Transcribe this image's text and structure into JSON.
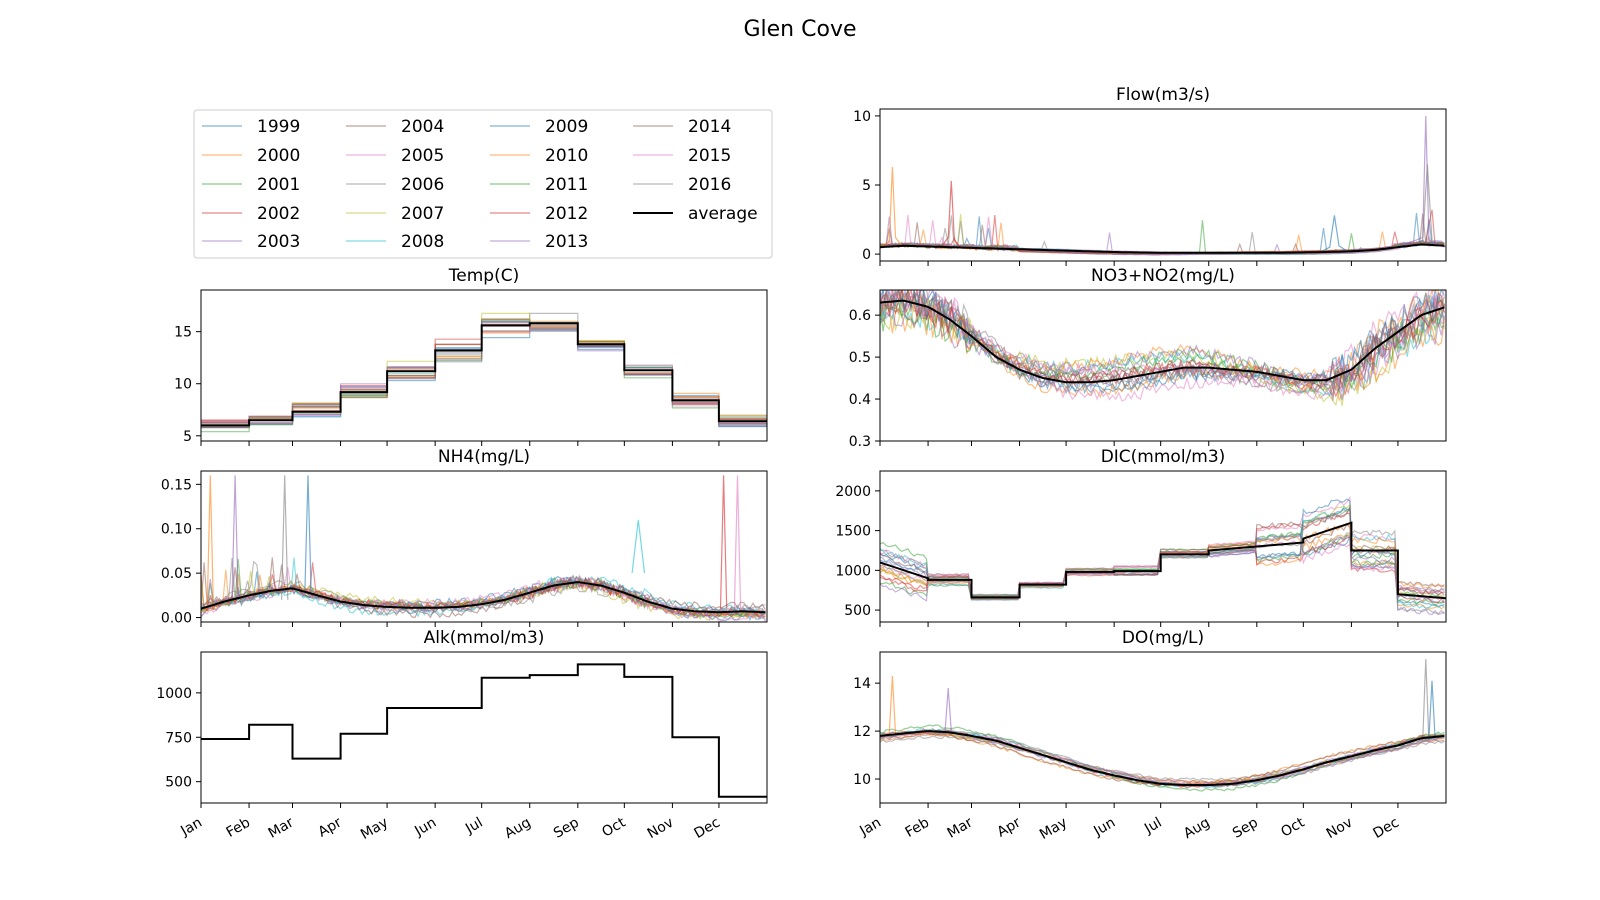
{
  "figure": {
    "title": "Glen Cove",
    "months": [
      "Jan",
      "Feb",
      "Mar",
      "Apr",
      "May",
      "Jun",
      "Jul",
      "Aug",
      "Sep",
      "Oct",
      "Nov",
      "Dec"
    ]
  },
  "legend": {
    "entries": [
      {
        "label": "1999",
        "color": "#1f77b4"
      },
      {
        "label": "2000",
        "color": "#ff7f0e"
      },
      {
        "label": "2001",
        "color": "#2ca02c"
      },
      {
        "label": "2002",
        "color": "#d62728"
      },
      {
        "label": "2003",
        "color": "#9467bd"
      },
      {
        "label": "2004",
        "color": "#8c564b"
      },
      {
        "label": "2005",
        "color": "#e377c2"
      },
      {
        "label": "2006",
        "color": "#7f7f7f"
      },
      {
        "label": "2007",
        "color": "#bcbd22"
      },
      {
        "label": "2008",
        "color": "#17becf"
      },
      {
        "label": "2009",
        "color": "#1f77b4"
      },
      {
        "label": "2010",
        "color": "#ff7f0e"
      },
      {
        "label": "2011",
        "color": "#2ca02c"
      },
      {
        "label": "2012",
        "color": "#d62728"
      },
      {
        "label": "2013",
        "color": "#9467bd"
      },
      {
        "label": "2014",
        "color": "#8c564b"
      },
      {
        "label": "2015",
        "color": "#e377c2"
      },
      {
        "label": "2016",
        "color": "#7f7f7f"
      },
      {
        "label": "average",
        "color": "#000000"
      }
    ]
  },
  "chart_data": [
    {
      "id": "flow",
      "type": "line",
      "title": "Flow(m3/s)",
      "ylim": [
        -0.5,
        10.5
      ],
      "yticks": [
        0,
        5,
        10
      ],
      "tick_labels": [
        "0",
        "5",
        "10"
      ],
      "xlim": [
        0,
        365
      ],
      "show_xlabels": false,
      "average": {
        "x": [
          0,
          15,
          31,
          45,
          59,
          75,
          90,
          105,
          120,
          135,
          151,
          166,
          181,
          196,
          212,
          227,
          243,
          258,
          273,
          288,
          304,
          319,
          334,
          349,
          365
        ],
        "y": [
          0.5,
          0.6,
          0.55,
          0.5,
          0.45,
          0.4,
          0.35,
          0.3,
          0.25,
          0.2,
          0.15,
          0.12,
          0.1,
          0.1,
          0.1,
          0.1,
          0.1,
          0.1,
          0.12,
          0.15,
          0.2,
          0.3,
          0.5,
          0.7,
          0.6
        ]
      },
      "highlights": [
        {
          "name": "2002",
          "x": [
            0,
            6,
            8,
            10,
            14
          ],
          "y": [
            0.5,
            0.9,
            6.3,
            1.2,
            0.6
          ]
        },
        {
          "name": "2000",
          "x": [
            334,
            350,
            352,
            354,
            360
          ],
          "y": [
            0.5,
            1.2,
            10.0,
            1.0,
            0.7
          ]
        },
        {
          "name": "2001",
          "x": [
            345,
            350,
            353,
            356,
            365
          ],
          "y": [
            0.6,
            1.0,
            6.5,
            1.0,
            0.5
          ]
        },
        {
          "name": "2003",
          "x": [
            285,
            290,
            293,
            296,
            300
          ],
          "y": [
            0.2,
            0.5,
            2.8,
            0.6,
            0.3
          ]
        },
        {
          "name": "1999",
          "x": [
            40,
            44,
            46,
            48,
            52
          ],
          "y": [
            0.6,
            1.2,
            5.3,
            1.0,
            0.5
          ]
        }
      ]
    },
    {
      "id": "temp",
      "type": "line",
      "title": "Temp(C)",
      "ylim": [
        4.5,
        19
      ],
      "yticks": [
        5,
        10,
        15
      ],
      "tick_labels": [
        "5",
        "10",
        "15"
      ],
      "xlim": [
        0,
        365
      ],
      "show_xlabels": false,
      "average_monthly": [
        6.0,
        6.5,
        7.3,
        9.2,
        11.2,
        13.2,
        15.6,
        15.8,
        13.8,
        11.3,
        8.4,
        6.4
      ],
      "spread": [
        1.0,
        1.0,
        1.5,
        1.4,
        1.6,
        2.0,
        2.4,
        2.0,
        1.0,
        1.2,
        1.2,
        1.0
      ]
    },
    {
      "id": "no3",
      "type": "line",
      "title": "NO3+NO2(mg/L)",
      "ylim": [
        0.3,
        0.66
      ],
      "yticks": [
        0.3,
        0.4,
        0.5,
        0.6
      ],
      "tick_labels": [
        "0.3",
        "0.4",
        "0.5",
        "0.6"
      ],
      "xlim": [
        0,
        365
      ],
      "show_xlabels": false,
      "average": {
        "x": [
          0,
          15,
          31,
          45,
          59,
          75,
          90,
          105,
          120,
          135,
          151,
          166,
          181,
          196,
          212,
          227,
          243,
          258,
          273,
          288,
          304,
          319,
          334,
          349,
          365
        ],
        "y": [
          0.63,
          0.635,
          0.62,
          0.59,
          0.55,
          0.5,
          0.47,
          0.45,
          0.44,
          0.44,
          0.445,
          0.455,
          0.465,
          0.475,
          0.475,
          0.47,
          0.465,
          0.455,
          0.445,
          0.445,
          0.47,
          0.52,
          0.56,
          0.6,
          0.62
        ]
      }
    },
    {
      "id": "nh4",
      "type": "line",
      "title": "NH4(mg/L)",
      "ylim": [
        -0.005,
        0.165
      ],
      "yticks": [
        0.0,
        0.05,
        0.1,
        0.15
      ],
      "tick_labels": [
        "0.00",
        "0.05",
        "0.10",
        "0.15"
      ],
      "xlim": [
        0,
        365
      ],
      "show_xlabels": false,
      "average": {
        "x": [
          0,
          15,
          31,
          45,
          59,
          75,
          90,
          105,
          120,
          135,
          151,
          166,
          181,
          196,
          212,
          227,
          243,
          258,
          273,
          288,
          304,
          319,
          334,
          349,
          365
        ],
        "y": [
          0.01,
          0.018,
          0.025,
          0.03,
          0.033,
          0.025,
          0.018,
          0.014,
          0.012,
          0.011,
          0.011,
          0.012,
          0.015,
          0.02,
          0.028,
          0.036,
          0.04,
          0.036,
          0.028,
          0.018,
          0.01,
          0.007,
          0.006,
          0.007,
          0.006
        ]
      },
      "spikes": [
        {
          "name": "2003",
          "x": [
            4,
            6,
            8
          ],
          "y": [
            0.01,
            0.16,
            0.01
          ]
        },
        {
          "name": "2006",
          "x": [
            20,
            22,
            24
          ],
          "y": [
            0.02,
            0.16,
            0.02
          ]
        },
        {
          "name": "1999",
          "x": [
            52,
            54,
            56
          ],
          "y": [
            0.02,
            0.16,
            0.02
          ]
        },
        {
          "name": "2002",
          "x": [
            67,
            69,
            71
          ],
          "y": [
            0.03,
            0.16,
            0.03
          ]
        },
        {
          "name": "2007",
          "x": [
            335,
            337,
            339
          ],
          "y": [
            0.01,
            0.16,
            0.01
          ]
        },
        {
          "name": "2011",
          "x": [
            344,
            346,
            348
          ],
          "y": [
            0.01,
            0.16,
            0.01
          ]
        },
        {
          "name": "2009",
          "x": [
            278,
            282,
            286
          ],
          "y": [
            0.05,
            0.11,
            0.05
          ]
        }
      ]
    },
    {
      "id": "dic",
      "type": "line",
      "title": "DIC(mmol/m3)",
      "ylim": [
        350,
        2250
      ],
      "yticks": [
        500,
        1000,
        1500,
        2000
      ],
      "tick_labels": [
        "500",
        "1000",
        "1500",
        "2000"
      ],
      "xlim": [
        0,
        365
      ],
      "show_xlabels": false,
      "average_monthly": [
        1100,
        880,
        660,
        820,
        980,
        990,
        1200,
        1250,
        1300,
        1400,
        1250,
        700
      ],
      "average_slope": [
        -200,
        0,
        0,
        0,
        0,
        0,
        0,
        50,
        50,
        200,
        0,
        -50
      ],
      "spread": [
        500,
        150,
        60,
        80,
        100,
        100,
        120,
        150,
        400,
        600,
        500,
        400
      ]
    },
    {
      "id": "alk",
      "type": "line",
      "title": "Alk(mmol/m3)",
      "ylim": [
        380,
        1230
      ],
      "yticks": [
        500,
        750,
        1000
      ],
      "tick_labels": [
        "500",
        "750",
        "1000"
      ],
      "xlim": [
        0,
        365
      ],
      "show_xlabels": true,
      "average_monthly": [
        740,
        820,
        630,
        770,
        915,
        915,
        1085,
        1100,
        1160,
        1090,
        750,
        415
      ]
    },
    {
      "id": "do",
      "type": "line",
      "title": "DO(mg/L)",
      "ylim": [
        9.0,
        15.3
      ],
      "yticks": [
        10,
        12,
        14
      ],
      "tick_labels": [
        "10",
        "12",
        "14"
      ],
      "xlim": [
        0,
        365
      ],
      "show_xlabels": true,
      "average": {
        "x": [
          0,
          15,
          31,
          45,
          59,
          75,
          90,
          105,
          120,
          135,
          151,
          166,
          181,
          196,
          212,
          227,
          243,
          258,
          273,
          288,
          304,
          319,
          334,
          349,
          365
        ],
        "y": [
          11.8,
          11.9,
          12.0,
          11.95,
          11.8,
          11.6,
          11.3,
          11.0,
          10.7,
          10.4,
          10.15,
          9.95,
          9.8,
          9.75,
          9.75,
          9.8,
          9.95,
          10.15,
          10.4,
          10.7,
          10.95,
          11.2,
          11.4,
          11.7,
          11.8
        ]
      },
      "spikes": [
        {
          "name": "2002",
          "x": [
            6,
            8,
            10
          ],
          "y": [
            11.9,
            14.3,
            11.9
          ]
        },
        {
          "name": "1999",
          "x": [
            42,
            44,
            46
          ],
          "y": [
            12.0,
            13.8,
            12.0
          ]
        },
        {
          "name": "2000",
          "x": [
            350,
            352,
            354
          ],
          "y": [
            11.6,
            15.0,
            11.6
          ]
        },
        {
          "name": "2001",
          "x": [
            354,
            356,
            358
          ],
          "y": [
            11.7,
            14.1,
            11.7
          ]
        }
      ]
    }
  ]
}
